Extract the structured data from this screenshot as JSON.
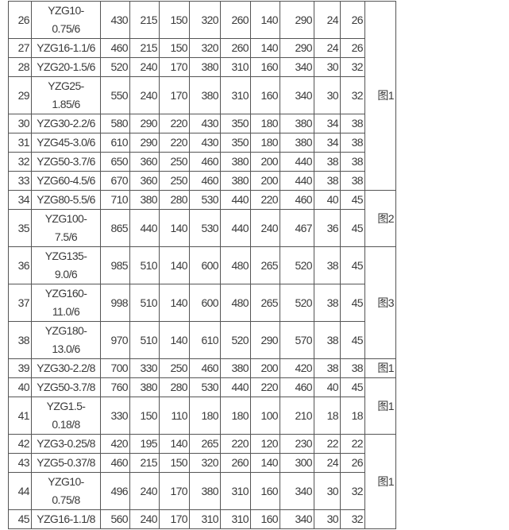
{
  "table": {
    "rows": [
      {
        "no": "26",
        "model": "YZG10-0.75/6",
        "values": [
          "430",
          "215",
          "150",
          "320",
          "260",
          "140",
          "290",
          "24",
          "26"
        ]
      },
      {
        "no": "27",
        "model": "YZG16-1.1/6",
        "values": [
          "460",
          "215",
          "150",
          "320",
          "260",
          "140",
          "290",
          "24",
          "26"
        ]
      },
      {
        "no": "28",
        "model": "YZG20-1.5/6",
        "values": [
          "520",
          "240",
          "170",
          "380",
          "310",
          "160",
          "340",
          "30",
          "32"
        ]
      },
      {
        "no": "29",
        "model": "YZG25-1.85/6",
        "values": [
          "550",
          "240",
          "170",
          "380",
          "310",
          "160",
          "340",
          "30",
          "32"
        ]
      },
      {
        "no": "30",
        "model": "YZG30-2.2/6",
        "values": [
          "580",
          "290",
          "220",
          "430",
          "350",
          "180",
          "380",
          "34",
          "38"
        ]
      },
      {
        "no": "31",
        "model": "YZG45-3.0/6",
        "values": [
          "610",
          "290",
          "220",
          "430",
          "350",
          "180",
          "380",
          "34",
          "38"
        ]
      },
      {
        "no": "32",
        "model": "YZG50-3.7/6",
        "values": [
          "650",
          "360",
          "250",
          "460",
          "380",
          "200",
          "440",
          "38",
          "38"
        ]
      },
      {
        "no": "33",
        "model": "YZG60-4.5/6",
        "values": [
          "670",
          "360",
          "250",
          "460",
          "380",
          "200",
          "440",
          "38",
          "38"
        ]
      },
      {
        "no": "34",
        "model": "YZG80-5.5/6",
        "values": [
          "710",
          "380",
          "280",
          "530",
          "440",
          "220",
          "460",
          "40",
          "45"
        ]
      },
      {
        "no": "35",
        "model": "YZG100-7.5/6",
        "values": [
          "865",
          "440",
          "140",
          "530",
          "440",
          "240",
          "467",
          "36",
          "45"
        ]
      },
      {
        "no": "36",
        "model": "YZG135-9.0/6",
        "values": [
          "985",
          "510",
          "140",
          "600",
          "480",
          "265",
          "520",
          "38",
          "45"
        ]
      },
      {
        "no": "37",
        "model": "YZG160-11.0/6",
        "values": [
          "998",
          "510",
          "140",
          "600",
          "480",
          "265",
          "520",
          "38",
          "45"
        ]
      },
      {
        "no": "38",
        "model": "YZG180-13.0/6",
        "values": [
          "970",
          "510",
          "140",
          "610",
          "520",
          "290",
          "570",
          "38",
          "45"
        ]
      },
      {
        "no": "39",
        "model": "YZG30-2.2/8",
        "values": [
          "700",
          "330",
          "250",
          "460",
          "380",
          "200",
          "420",
          "38",
          "38"
        ]
      },
      {
        "no": "40",
        "model": "YZG50-3.7/8",
        "values": [
          "760",
          "380",
          "280",
          "530",
          "440",
          "220",
          "460",
          "40",
          "45"
        ]
      },
      {
        "no": "41",
        "model": "YZG1.5-0.18/8",
        "values": [
          "330",
          "150",
          "110",
          "180",
          "180",
          "100",
          "210",
          "18",
          "18"
        ]
      },
      {
        "no": "42",
        "model": "YZG3-0.25/8",
        "values": [
          "420",
          "195",
          "140",
          "265",
          "220",
          "120",
          "230",
          "22",
          "22"
        ]
      },
      {
        "no": "43",
        "model": "YZG5-0.37/8",
        "values": [
          "460",
          "215",
          "150",
          "320",
          "260",
          "140",
          "300",
          "24",
          "26"
        ]
      },
      {
        "no": "44",
        "model": "YZG10-0.75/8",
        "values": [
          "496",
          "240",
          "170",
          "380",
          "310",
          "160",
          "340",
          "30",
          "32"
        ]
      },
      {
        "no": "45",
        "model": "YZG16-1.1/8",
        "values": [
          "560",
          "240",
          "170",
          "310",
          "310",
          "160",
          "340",
          "30",
          "32"
        ]
      }
    ],
    "figures": [
      {
        "label": "图1",
        "start": 0,
        "span": 8
      },
      {
        "label": "图2",
        "start": 8,
        "span": 2
      },
      {
        "label": "图3",
        "start": 10,
        "span": 3
      },
      {
        "label": "图1",
        "start": 13,
        "span": 1
      },
      {
        "label": "图1",
        "start": 14,
        "span": 2
      },
      {
        "label": "图1",
        "start": 16,
        "span": 4
      }
    ]
  }
}
